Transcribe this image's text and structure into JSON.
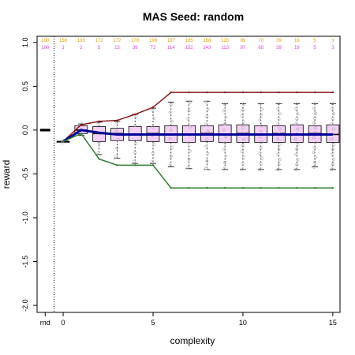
{
  "chart_data": {
    "type": "boxplot",
    "title": "MAS  Seed: random",
    "xlabel": "complexity",
    "ylabel": "reward",
    "xlim": [
      -1.45,
      15.4
    ],
    "ylim": [
      -2.08,
      1.07
    ],
    "x_ticks": [
      0,
      5,
      10,
      15
    ],
    "y_ticks": [
      -2.0,
      -1.5,
      -1.0,
      -0.5,
      0.0,
      0.5,
      1.0
    ],
    "y_tick_labels": [
      "-2.0",
      "-1.5",
      "-1.0",
      "-0.5",
      "0.0",
      "0.5",
      "1.0"
    ],
    "extra_x_label": "rnd",
    "rnd_x": -1.0,
    "divider_x": -0.5,
    "complexity": [
      0,
      1,
      2,
      3,
      4,
      5,
      6,
      7,
      8,
      9,
      10,
      11,
      12,
      13,
      14,
      15
    ],
    "count_rows": [
      {
        "name": "",
        "color": "#E69F00",
        "rnd": "100",
        "values": [
          "156",
          "193",
          "171",
          "172",
          "178",
          "198",
          "187",
          "195",
          "158",
          "120",
          "89",
          "70",
          "39",
          "19",
          "5",
          "3"
        ]
      },
      {
        "name": "",
        "color": "#DD44DD",
        "rnd": "100",
        "values": [
          "1",
          "2",
          "5",
          "13",
          "39",
          "72",
          "114",
          "152",
          "143",
          "113",
          "87",
          "68",
          "39",
          "19",
          "5",
          "3"
        ]
      }
    ],
    "boxes": [
      {
        "x": 0,
        "q1": -0.13,
        "median": -0.13,
        "q3": -0.13,
        "lo": -0.13,
        "hi": -0.13
      },
      {
        "x": 1,
        "q1": -0.04,
        "median": 0.0,
        "q3": 0.05,
        "lo": -0.06,
        "hi": 0.07
      },
      {
        "x": 2,
        "q1": -0.13,
        "median": -0.04,
        "q3": 0.04,
        "lo": -0.28,
        "hi": 0.09
      },
      {
        "x": 3,
        "q1": -0.12,
        "median": -0.04,
        "q3": 0.02,
        "lo": -0.32,
        "hi": 0.1
      },
      {
        "x": 4,
        "q1": -0.12,
        "median": -0.05,
        "q3": 0.04,
        "lo": -0.38,
        "hi": 0.18
      },
      {
        "x": 5,
        "q1": -0.13,
        "median": -0.04,
        "q3": 0.04,
        "lo": -0.38,
        "hi": 0.25
      },
      {
        "x": 6,
        "q1": -0.14,
        "median": -0.05,
        "q3": 0.05,
        "lo": -0.42,
        "hi": 0.32
      },
      {
        "x": 7,
        "q1": -0.14,
        "median": -0.05,
        "q3": 0.05,
        "lo": -0.44,
        "hi": 0.33
      },
      {
        "x": 8,
        "q1": -0.13,
        "median": -0.04,
        "q3": 0.05,
        "lo": -0.45,
        "hi": 0.33
      },
      {
        "x": 9,
        "q1": -0.14,
        "median": -0.05,
        "q3": 0.06,
        "lo": -0.45,
        "hi": 0.3
      },
      {
        "x": 10,
        "q1": -0.14,
        "median": -0.04,
        "q3": 0.06,
        "lo": -0.45,
        "hi": 0.3
      },
      {
        "x": 11,
        "q1": -0.14,
        "median": -0.05,
        "q3": 0.05,
        "lo": -0.45,
        "hi": 0.3
      },
      {
        "x": 12,
        "q1": -0.14,
        "median": -0.04,
        "q3": 0.05,
        "lo": -0.45,
        "hi": 0.3
      },
      {
        "x": 13,
        "q1": -0.14,
        "median": -0.05,
        "q3": 0.06,
        "lo": -0.45,
        "hi": 0.3
      },
      {
        "x": 14,
        "q1": -0.14,
        "median": -0.04,
        "q3": 0.05,
        "lo": -0.42,
        "hi": 0.3
      },
      {
        "x": 15,
        "q1": -0.14,
        "median": -0.05,
        "q3": 0.06,
        "lo": -0.45,
        "hi": 0.3
      }
    ],
    "rnd_box": {
      "q1": -0.01,
      "median": 0.0,
      "q3": 0.01,
      "lo": -0.02,
      "hi": 0.02
    },
    "series": [
      {
        "color": "#8B1A1A",
        "values": [
          -0.13,
          0.06,
          0.1,
          0.11,
          0.18,
          0.26,
          0.43,
          0.43,
          0.43,
          0.43,
          0.43,
          0.43,
          0.43,
          0.43,
          0.43,
          0.43
        ]
      },
      {
        "color": "#000099",
        "values": [
          -0.13,
          0.0,
          -0.03,
          -0.05,
          -0.05,
          -0.05,
          -0.05,
          -0.05,
          -0.05,
          -0.05,
          -0.05,
          -0.05,
          -0.05,
          -0.05,
          -0.05,
          -0.05
        ]
      },
      {
        "color": "#2E7D32",
        "values": [
          -0.13,
          -0.04,
          -0.33,
          -0.4,
          -0.4,
          -0.4,
          -0.66,
          -0.66,
          -0.66,
          -0.66,
          -0.66,
          -0.66,
          -0.66,
          -0.66,
          -0.66,
          -0.66
        ]
      }
    ],
    "box_fill": "#F5D0F5",
    "outlier_color": "#AAAAAA",
    "grid": false,
    "legend": "none"
  }
}
